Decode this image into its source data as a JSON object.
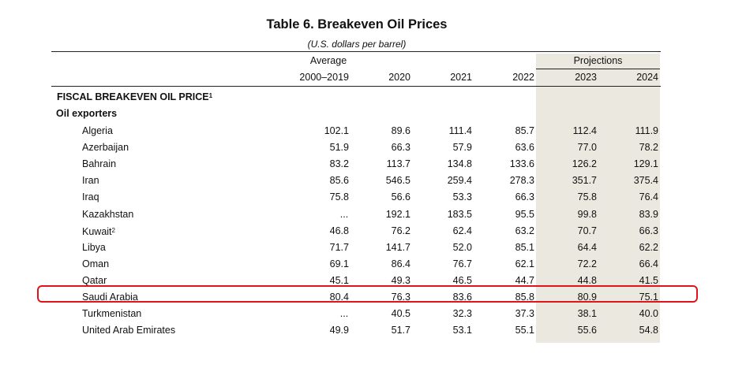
{
  "title": "Table 6. Breakeven Oil Prices",
  "subtitle": "(U.S. dollars per barrel)",
  "header": {
    "average_label": "Average",
    "projections_label": "Projections",
    "columns": [
      "2000–2019",
      "2020",
      "2021",
      "2022",
      "2023",
      "2024"
    ]
  },
  "section_title": "FISCAL BREAKEVEN OIL PRICE",
  "section_note": "1",
  "group_title": "Oil exporters",
  "rows": [
    {
      "label": "Algeria",
      "note": "",
      "values": [
        "102.1",
        "89.6",
        "111.4",
        "85.7",
        "112.4",
        "111.9"
      ]
    },
    {
      "label": "Azerbaijan",
      "note": "",
      "values": [
        "51.9",
        "66.3",
        "57.9",
        "63.6",
        "77.0",
        "78.2"
      ]
    },
    {
      "label": "Bahrain",
      "note": "",
      "values": [
        "83.2",
        "113.7",
        "134.8",
        "133.6",
        "126.2",
        "129.1"
      ]
    },
    {
      "label": "Iran",
      "note": "",
      "values": [
        "85.6",
        "546.5",
        "259.4",
        "278.3",
        "351.7",
        "375.4"
      ]
    },
    {
      "label": "Iraq",
      "note": "",
      "values": [
        "75.8",
        "56.6",
        "53.3",
        "66.3",
        "75.8",
        "76.4"
      ]
    },
    {
      "label": "Kazakhstan",
      "note": "",
      "values": [
        "...",
        "192.1",
        "183.5",
        "95.5",
        "99.8",
        "83.9"
      ]
    },
    {
      "label": "Kuwait",
      "note": "2",
      "values": [
        "46.8",
        "76.2",
        "62.4",
        "63.2",
        "70.7",
        "66.3"
      ]
    },
    {
      "label": "Libya",
      "note": "",
      "values": [
        "71.7",
        "141.7",
        "52.0",
        "85.1",
        "64.4",
        "62.2"
      ]
    },
    {
      "label": "Oman",
      "note": "",
      "values": [
        "69.1",
        "86.4",
        "76.7",
        "62.1",
        "72.2",
        "66.4"
      ]
    },
    {
      "label": "Qatar",
      "note": "",
      "values": [
        "45.1",
        "49.3",
        "46.5",
        "44.7",
        "44.8",
        "41.5"
      ]
    },
    {
      "label": "Saudi Arabia",
      "note": "",
      "values": [
        "80.4",
        "76.3",
        "83.6",
        "85.8",
        "80.9",
        "75.1"
      ]
    },
    {
      "label": "Turkmenistan",
      "note": "",
      "values": [
        "...",
        "40.5",
        "32.3",
        "37.3",
        "38.1",
        "40.0"
      ]
    },
    {
      "label": "United Arab Emirates",
      "note": "",
      "values": [
        "49.9",
        "51.7",
        "53.1",
        "55.1",
        "55.6",
        "54.8"
      ]
    }
  ],
  "highlighted_row": "Saudi Arabia",
  "colors": {
    "highlight": "#e0151b",
    "projection_shade": "#ebe9df"
  }
}
